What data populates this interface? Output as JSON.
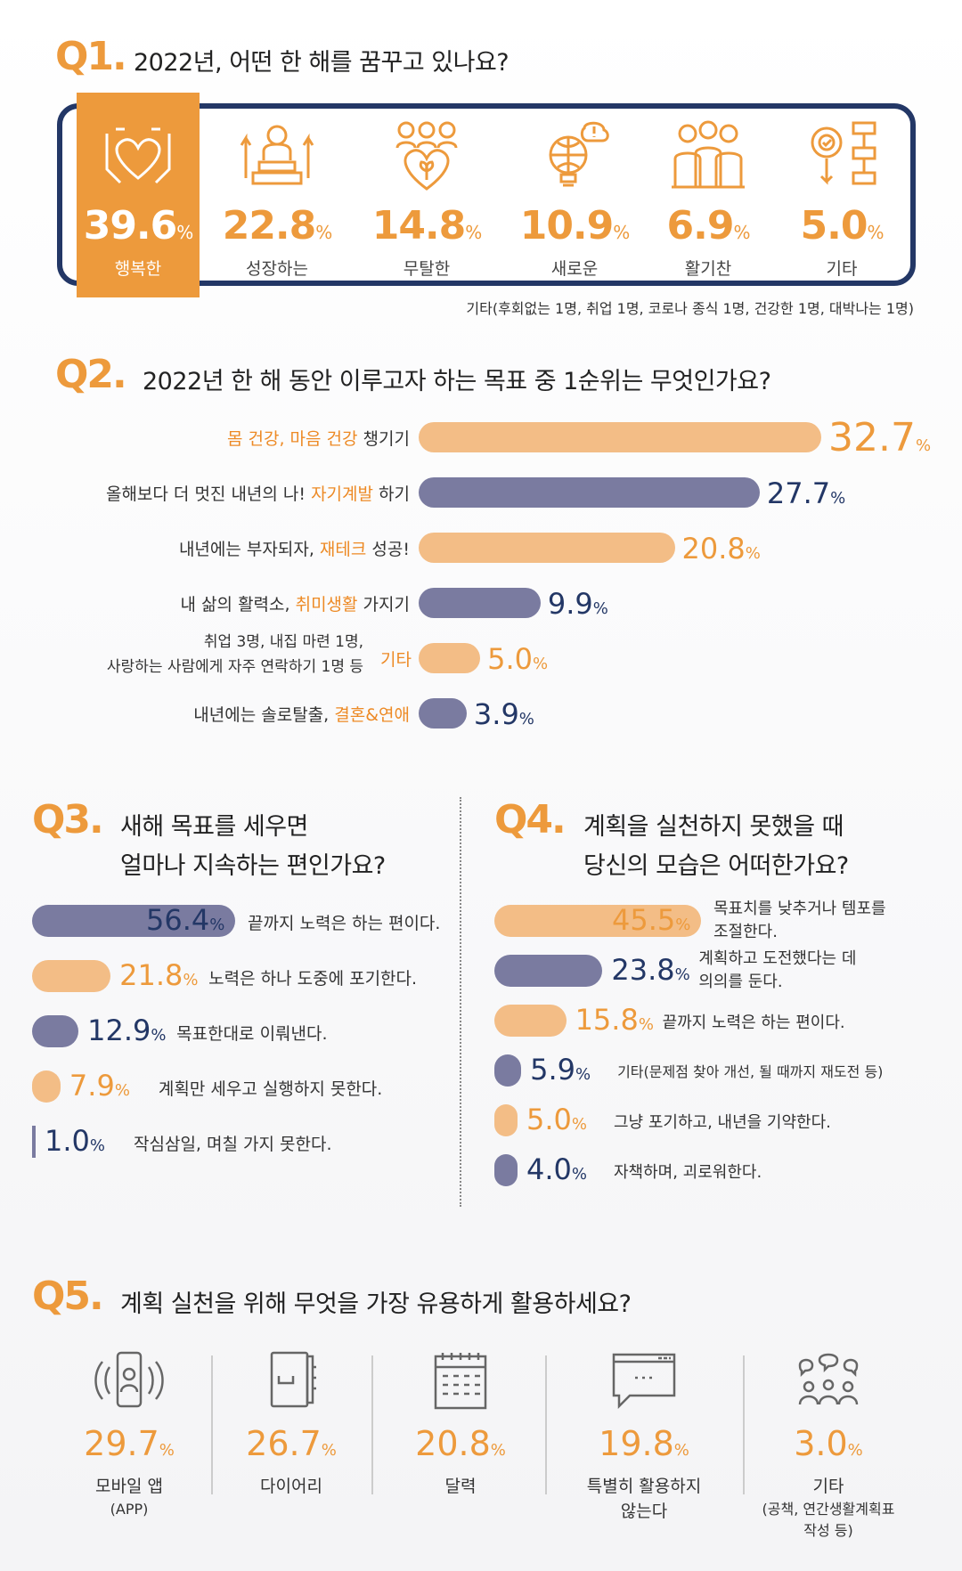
{
  "q1": {
    "label": "Q1.",
    "question": "2022년, 어떤 한 해를 꿈꾸고 있나요?",
    "items": [
      {
        "value": "39.6",
        "unit": "%",
        "label": "행복한",
        "icon": "hands-heart-icon"
      },
      {
        "value": "22.8",
        "unit": "%",
        "label": "성장하는",
        "icon": "person-podium-icon"
      },
      {
        "value": "14.8",
        "unit": "%",
        "label": "무탈한",
        "icon": "family-heart-icon"
      },
      {
        "value": "10.9",
        "unit": "%",
        "label": "새로운",
        "icon": "lightbulb-globe-icon"
      },
      {
        "value": "6.9",
        "unit": "%",
        "label": "활기찬",
        "icon": "group-people-icon"
      },
      {
        "value": "5.0",
        "unit": "%",
        "label": "기타",
        "icon": "gear-flow-icon"
      }
    ],
    "note": "기타(후회없는 1명, 취업 1명, 코로나 종식 1명, 건강한 1명, 대박나는 1명)"
  },
  "q2": {
    "label": "Q2.",
    "question": "2022년 한 해 동안 이루고자 하는 목표 중 1순위는 무엇인가요?",
    "rows": [
      {
        "pre": "",
        "hl": "몸 건강, 마음 건강",
        "post": " 챙기기",
        "value": "32.7"
      },
      {
        "pre": "올해보다 더 멋진 내년의 나! ",
        "hl": "자기계발",
        "post": " 하기",
        "value": "27.7"
      },
      {
        "pre": "내년에는 부자되자, ",
        "hl": "재테크",
        "post": " 성공!",
        "value": "20.8"
      },
      {
        "pre": "내 삶의 활력소, ",
        "hl": "취미생활",
        "post": " 가지기",
        "value": "9.9"
      },
      {
        "pre": "취업 3명, 내집 마련 1명,",
        "pre2": "사랑하는 사람에게 자주 연락하기 1명 등",
        "hl": "기타",
        "post": "",
        "value": "5.0"
      },
      {
        "pre": "내년에는 솔로탈출, ",
        "hl": "결혼&연애",
        "post": "",
        "value": "3.9"
      }
    ],
    "unit": "%"
  },
  "q3": {
    "label": "Q3.",
    "question_line1": "새해 목표를 세우면",
    "question_line2": "얼마나 지속하는 편인가요?",
    "rows": [
      {
        "value": "56.4",
        "label": "끝까지 노력은 하는 편이다."
      },
      {
        "value": "21.8",
        "label": "노력은 하나 도중에 포기한다."
      },
      {
        "value": "12.9",
        "label": "목표한대로 이뤄낸다."
      },
      {
        "value": "7.9",
        "label": "계획만 세우고 실행하지 못한다."
      },
      {
        "value": "1.0",
        "label": "작심삼일, 며칠 가지 못한다."
      }
    ],
    "unit": "%"
  },
  "q4": {
    "label": "Q4.",
    "question_line1": "계획을 실천하지 못했을 때",
    "question_line2": "당신의 모습은 어떠한가요?",
    "rows": [
      {
        "value": "45.5",
        "label": "목표치를 낮추거나 템포를",
        "label2": "조절한다."
      },
      {
        "value": "23.8",
        "label": "계획하고 도전했다는 데",
        "label2": "의의를 둔다."
      },
      {
        "value": "15.8",
        "label": "끝까지 노력은 하는 편이다.",
        "label2": ""
      },
      {
        "value": "5.9",
        "label": "기타(문제점 찾아 개선, 될 때까지 재도전 등)",
        "label2": ""
      },
      {
        "value": "5.0",
        "label": "그냥 포기하고, 내년을 기약한다.",
        "label2": ""
      },
      {
        "value": "4.0",
        "label": "자책하며, 괴로워한다.",
        "label2": ""
      }
    ],
    "unit": "%"
  },
  "q5": {
    "label": "Q5.",
    "question": "계획 실천을 위해 무엇을 가장 유용하게 활용하세요?",
    "items": [
      {
        "value": "29.7",
        "label": "모바일 앱",
        "sub": "(APP)",
        "icon": "mobile-phone-icon"
      },
      {
        "value": "26.7",
        "label": "다이어리",
        "sub": "",
        "icon": "diary-icon"
      },
      {
        "value": "20.8",
        "label": "달력",
        "sub": "",
        "icon": "calendar-icon"
      },
      {
        "value": "19.8",
        "label": "특별히 활용하지",
        "sub": "않는다",
        "icon": "chat-window-icon"
      },
      {
        "value": "3.0",
        "label": "기타",
        "sub": "(공책, 연간생활계획표",
        "sub2": "작성 등)",
        "icon": "group-chat-icon"
      }
    ],
    "unit": "%"
  },
  "chart_data": [
    {
      "type": "bar",
      "title": "2022년, 어떤 한 해를 꿈꾸고 있나요?",
      "categories": [
        "행복한",
        "성장하는",
        "무탈한",
        "새로운",
        "활기찬",
        "기타"
      ],
      "values": [
        39.6,
        22.8,
        14.8,
        10.9,
        6.9,
        5.0
      ]
    },
    {
      "type": "bar",
      "title": "2022년 한 해 동안 이루고자 하는 목표 중 1순위는 무엇인가요?",
      "categories": [
        "몸 건강, 마음 건강 챙기기",
        "자기계발 하기",
        "재테크 성공",
        "취미생활 가지기",
        "기타",
        "결혼&연애"
      ],
      "values": [
        32.7,
        27.7,
        20.8,
        9.9,
        5.0,
        3.9
      ]
    },
    {
      "type": "bar",
      "title": "새해 목표를 세우면 얼마나 지속하는 편인가요?",
      "categories": [
        "끝까지 노력은 하는 편이다.",
        "노력은 하나 도중에 포기한다.",
        "목표한대로 이뤄낸다.",
        "계획만 세우고 실행하지 못한다.",
        "작심삼일, 며칠 가지 못한다."
      ],
      "values": [
        56.4,
        21.8,
        12.9,
        7.9,
        1.0
      ]
    },
    {
      "type": "bar",
      "title": "계획을 실천하지 못했을 때 당신의 모습은 어떠한가요?",
      "categories": [
        "목표치를 낮추거나 템포를 조절한다.",
        "계획하고 도전했다는 데 의의를 둔다.",
        "끝까지 노력은 하는 편이다.",
        "기타(문제점 찾아 개선, 될 때까지 재도전 등)",
        "그냥 포기하고, 내년을 기약한다.",
        "자책하며, 괴로워한다."
      ],
      "values": [
        45.5,
        23.8,
        15.8,
        5.9,
        5.0,
        4.0
      ]
    },
    {
      "type": "bar",
      "title": "계획 실천을 위해 무엇을 가장 유용하게 활용하세요?",
      "categories": [
        "모바일 앱 (APP)",
        "다이어리",
        "달력",
        "특별히 활용하지 않는다",
        "기타"
      ],
      "values": [
        29.7,
        26.7,
        20.8,
        19.8,
        3.0
      ]
    }
  ],
  "colors": {
    "orange": "#ed9a3c",
    "orange_light": "#f3bd86",
    "navy": "#233766",
    "navy_bar": "#7a7ba0"
  }
}
